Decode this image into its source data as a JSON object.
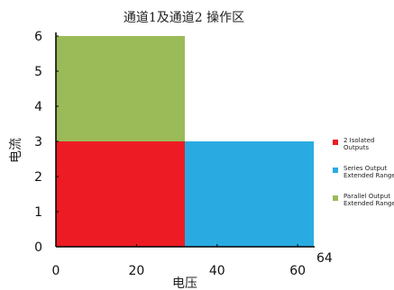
{
  "chart_data": {
    "type": "area",
    "title": "通道1及通道2 操作区",
    "xlabel": "电压",
    "ylabel": "电流",
    "xlim": [
      0,
      64
    ],
    "ylim": [
      0,
      6
    ],
    "x_ticks": [
      "0",
      "20",
      "40",
      "60"
    ],
    "x_extra_tick": "64",
    "y_ticks": [
      "0",
      "1",
      "2",
      "3",
      "4",
      "5",
      "6"
    ],
    "regions": [
      {
        "name": "2 Isolated Outputs",
        "legend_lines": [
          "2 Isolated",
          "Outputs"
        ],
        "color": "#ed1c24",
        "x": [
          0,
          32
        ],
        "y": [
          0,
          3
        ]
      },
      {
        "name": "Series Output Extended Range",
        "legend_lines": [
          "Series Output",
          "Extended Range"
        ],
        "color": "#29abe2",
        "x": [
          32,
          64
        ],
        "y": [
          0,
          3
        ]
      },
      {
        "name": "Parallel Output Extended Range",
        "legend_lines": [
          "Parallel Output",
          "Extended Range"
        ],
        "color": "#9bbb59",
        "x": [
          0,
          32
        ],
        "y": [
          3,
          6
        ]
      }
    ],
    "legend_position": "right",
    "grid": false
  }
}
